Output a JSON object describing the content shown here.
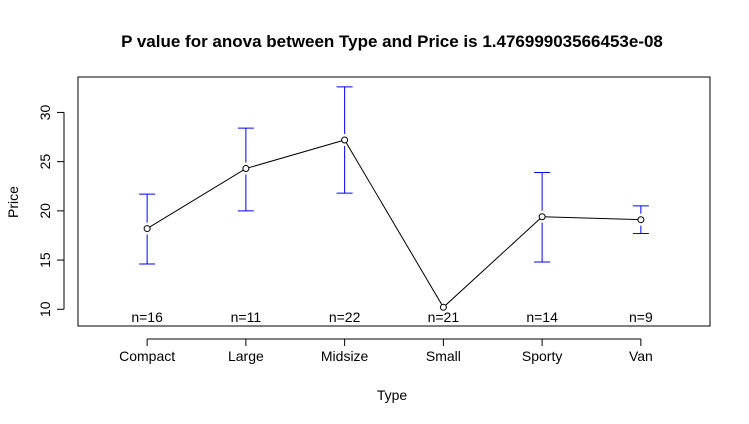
{
  "chart_data": {
    "type": "line",
    "title": "P value for anova between Type  and  Price  is  1.47699903566453e-08",
    "xlabel": "Type",
    "ylabel": "Price",
    "categories": [
      "Compact",
      "Large",
      "Midsize",
      "Small",
      "Sporty",
      "Van"
    ],
    "series": [
      {
        "values": [
          18.2,
          24.3,
          27.2,
          10.2,
          19.4,
          19.1
        ],
        "ci_lower": [
          14.6,
          20.0,
          21.8,
          10.2,
          14.8,
          17.7
        ],
        "ci_upper": [
          21.7,
          28.4,
          32.6,
          10.2,
          23.9,
          20.5
        ]
      }
    ],
    "counts": [
      "n=16",
      "n=11",
      "n=22",
      "n=21",
      "n=14",
      "n=9"
    ],
    "yticks": [
      10,
      15,
      20,
      25,
      30
    ],
    "ylim": [
      8.3,
      33.6
    ],
    "xlim": [
      0.3,
      6.7
    ],
    "grid": false,
    "colors": {
      "line": "#000000",
      "error_bars": "#0000ff",
      "axis": "#000000"
    }
  }
}
